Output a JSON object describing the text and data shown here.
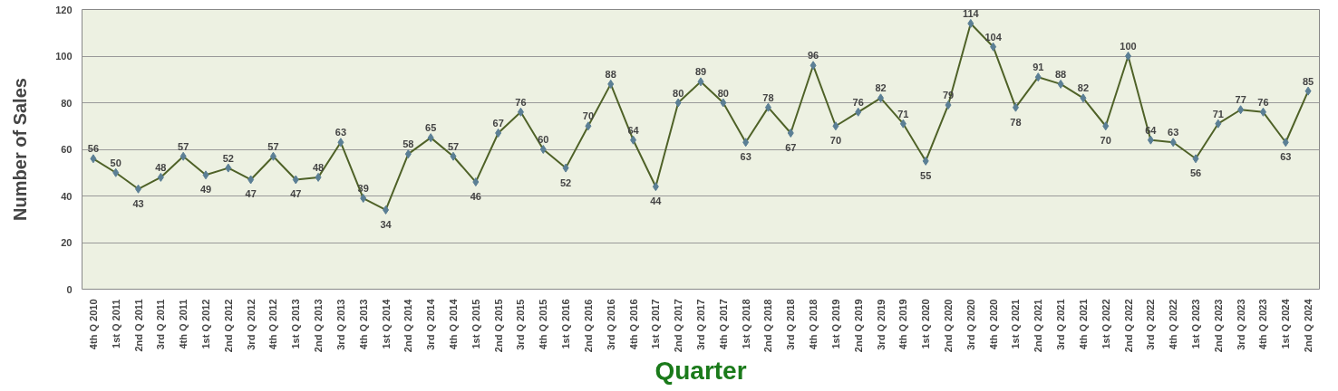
{
  "chart_data": {
    "type": "line",
    "xlabel": "Quarter",
    "ylabel": "Number of Sales",
    "categories": [
      "4th Q 2010",
      "1st Q 2011",
      "2nd Q 2011",
      "3rd Q 2011",
      "4th Q 2011",
      "1st Q 2012",
      "2nd Q 2012",
      "3rd Q 2012",
      "4th Q 2012",
      "1st Q 2013",
      "2nd Q 2013",
      "3rd Q 2013",
      "4th Q 2013",
      "1st Q 2014",
      "2nd Q 2014",
      "3rd Q 2014",
      "4th Q 2014",
      "1st Q 2015",
      "2nd Q 2015",
      "3rd Q 2015",
      "4th Q 2015",
      "1st Q 2016",
      "2nd Q 2016",
      "3rd Q 2016",
      "4th Q 2016",
      "1st Q 2017",
      "2nd Q 2017",
      "3rd Q 2017",
      "4th Q 2017",
      "1st Q 2018",
      "2nd Q 2018",
      "3rd Q 2018",
      "4th Q 2018",
      "1st Q 2019",
      "2nd Q 2019",
      "3rd Q 2019",
      "4th Q 2019",
      "1st Q 2020",
      "2nd Q 2020",
      "3rd Q 2020",
      "4th Q 2020",
      "1st Q 2021",
      "2nd Q 2021",
      "3rd Q 2021",
      "4th Q 2021",
      "1st Q 2022",
      "2nd Q 2022",
      "3rd Q 2022",
      "4th Q 2022",
      "1st Q 2023",
      "2nd Q 2023",
      "3rd Q 2023",
      "4th Q 2023",
      "1st Q 2024",
      "2nd Q 2024"
    ],
    "series": [
      {
        "color": "#4f6228",
        "values": [
          56,
          50,
          43,
          48,
          57,
          49,
          52,
          47,
          57,
          47,
          48,
          63,
          39,
          34,
          58,
          65,
          57,
          46,
          67,
          76,
          60,
          52,
          70,
          88,
          64,
          44,
          80,
          89,
          80,
          63,
          78,
          67,
          96,
          70,
          76,
          82,
          71,
          55,
          79,
          114,
          104,
          78,
          91,
          88,
          82,
          70,
          100,
          64,
          63,
          56,
          71,
          77,
          76,
          63,
          85
        ]
      }
    ],
    "ylim": [
      0,
      120
    ],
    "yticks": [
      0,
      20,
      40,
      60,
      80,
      100,
      120
    ],
    "grid": "y",
    "marker": "diamond",
    "line_style": "solid",
    "data_labels": true
  }
}
